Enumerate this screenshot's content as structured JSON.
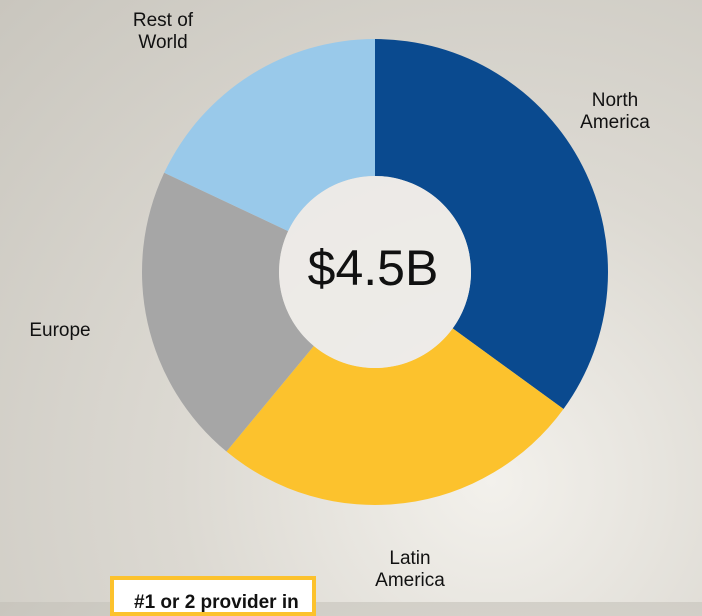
{
  "chart_data": {
    "type": "donut",
    "center_label": "$4.5B",
    "categories": [
      "North America",
      "Latin America",
      "Europe",
      "Rest of World"
    ],
    "values": [
      35,
      26,
      21,
      18
    ],
    "colors": [
      "#0a4a8f",
      "#fcc22d",
      "#a6a6a6",
      "#99c9ea"
    ]
  },
  "callout": "#1 or 2 provider in"
}
